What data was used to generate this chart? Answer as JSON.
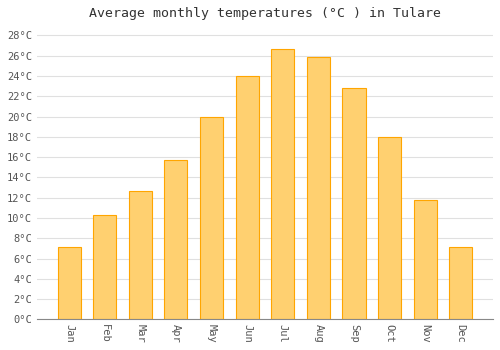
{
  "title": "Average monthly temperatures (°C ) in Tulare",
  "months": [
    "Jan",
    "Feb",
    "Mar",
    "Apr",
    "May",
    "Jun",
    "Jul",
    "Aug",
    "Sep",
    "Oct",
    "Nov",
    "Dec"
  ],
  "values": [
    7.1,
    10.3,
    12.7,
    15.7,
    20.0,
    24.0,
    26.7,
    25.9,
    22.8,
    18.0,
    11.8,
    7.1
  ],
  "bar_color": "#FFA500",
  "bar_color_light": "#FFD070",
  "ylim": [
    0,
    29
  ],
  "yticks": [
    0,
    2,
    4,
    6,
    8,
    10,
    12,
    14,
    16,
    18,
    20,
    22,
    24,
    26,
    28
  ],
  "ytick_labels": [
    "0°C",
    "2°C",
    "4°C",
    "6°C",
    "8°C",
    "10°C",
    "12°C",
    "14°C",
    "16°C",
    "18°C",
    "20°C",
    "22°C",
    "24°C",
    "26°C",
    "28°C"
  ],
  "background_color": "#ffffff",
  "grid_color": "#e0e0e0",
  "title_fontsize": 9.5,
  "tick_fontsize": 7.5,
  "font_family": "monospace",
  "bar_width": 0.65
}
